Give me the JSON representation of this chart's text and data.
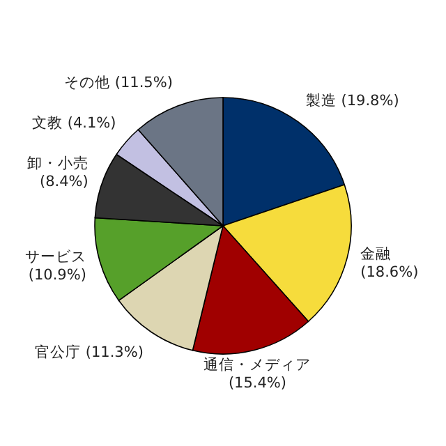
{
  "chart_data": {
    "type": "pie",
    "categories": [
      "製造",
      "金融",
      "通信・メディア",
      "官公庁",
      "サービス",
      "卸・小売",
      "文教",
      "その他"
    ],
    "values": [
      19.8,
      18.6,
      15.4,
      11.3,
      10.9,
      8.4,
      4.1,
      11.5
    ],
    "value_labels": [
      "(19.8%)",
      "(18.6%)",
      "(15.4%)",
      "(11.3%)",
      "(10.9%)",
      "(8.4%)",
      "(4.1%)",
      "(11.5%)"
    ],
    "colors": [
      "#00306a",
      "#f6dc3c",
      "#a00000",
      "#ddd6b2",
      "#56a02a",
      "#333333",
      "#c2c0e2",
      "#6b7585"
    ]
  }
}
